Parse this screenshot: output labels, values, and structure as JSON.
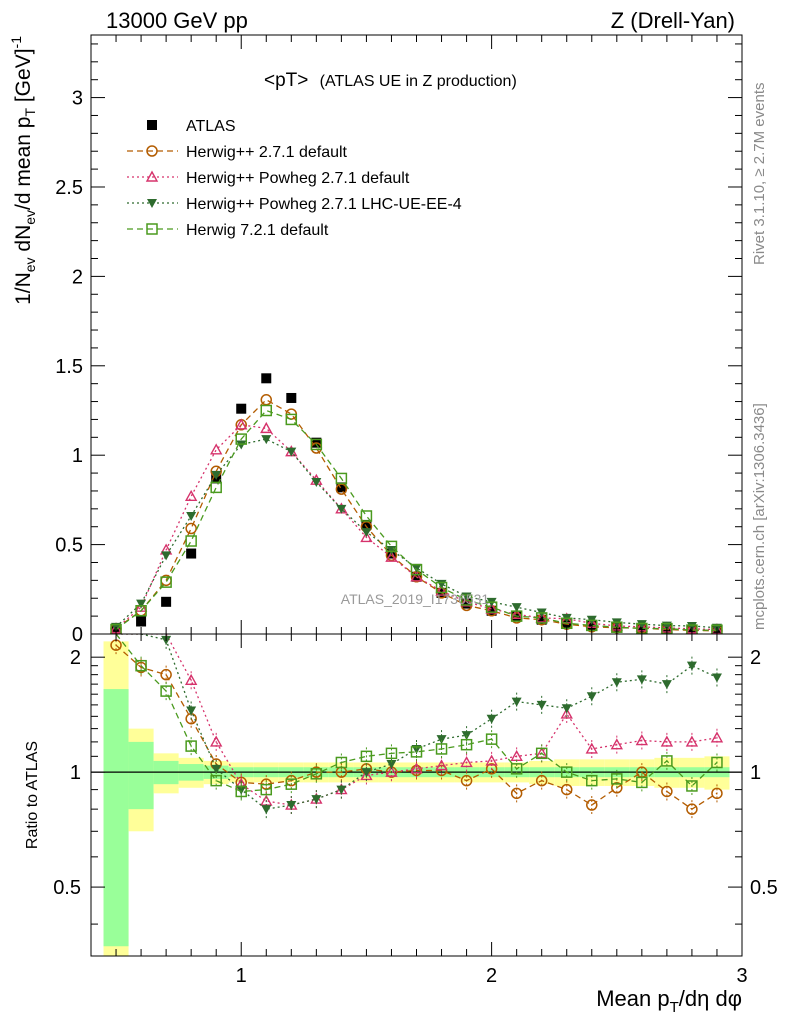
{
  "header": {
    "left": "13000 GeV pp",
    "right": "Z (Drell-Yan)"
  },
  "side_labels": {
    "rivet": "Rivet 3.1.10, ≥ 2.7M events",
    "mcplots": "mcplots.cern.ch [arXiv:1306.3436]"
  },
  "chart_data": [
    {
      "type": "scatter",
      "panel": "main",
      "title": "<pT> (ATLAS UE in Z production)",
      "title_main": "<pT>",
      "title_sub": "(ATLAS UE in Z production)",
      "xlabel": "Mean p_T/dη dφ",
      "ylabel": "1/N_ev dN_ev/d mean p_T [GeV]^-1",
      "watermark": "ATLAS_2019_I1736531",
      "xlim": [
        0.4,
        3.0
      ],
      "ylim": [
        0,
        3.35
      ],
      "y_ticks": [
        "0",
        "0.5",
        "1",
        "1.5",
        "2",
        "2.5",
        "3"
      ],
      "y_tick_values": [
        0,
        0.5,
        1,
        1.5,
        2,
        2.5,
        3
      ],
      "legend_position": "top-left",
      "x": [
        0.5,
        0.6,
        0.7,
        0.8,
        0.9,
        1.0,
        1.1,
        1.2,
        1.3,
        1.4,
        1.5,
        1.6,
        1.7,
        1.8,
        1.9,
        2.0,
        2.1,
        2.2,
        2.3,
        2.4,
        2.5,
        2.6,
        2.7,
        2.8,
        2.9
      ],
      "series": [
        {
          "name": "ATLAS",
          "color": "#000000",
          "marker": "square-filled",
          "line": "none",
          "values": [
            0.02,
            0.07,
            0.18,
            0.45,
            0.87,
            1.26,
            1.43,
            1.32,
            1.07,
            0.82,
            0.61,
            0.45,
            0.32,
            0.23,
            0.17,
            0.13,
            0.1,
            0.08,
            0.06,
            0.05,
            0.04,
            0.033,
            0.028,
            0.024,
            0.02
          ]
        },
        {
          "name": "Herwig++ 2.7.1 default",
          "color": "#b35c00",
          "marker": "circle-open",
          "line": "dashed",
          "values": [
            0.03,
            0.13,
            0.3,
            0.59,
            0.91,
            1.17,
            1.31,
            1.23,
            1.04,
            0.81,
            0.6,
            0.44,
            0.32,
            0.23,
            0.16,
            0.13,
            0.09,
            0.08,
            0.055,
            0.04,
            0.035,
            0.033,
            0.025,
            0.02,
            0.018
          ]
        },
        {
          "name": "Herwig++ Powheg 2.7.1 default",
          "color": "#d6336c",
          "marker": "triangle-up-open",
          "line": "dotted",
          "values": [
            0.03,
            0.15,
            0.47,
            0.77,
            1.03,
            1.17,
            1.15,
            1.02,
            0.86,
            0.7,
            0.54,
            0.43,
            0.32,
            0.24,
            0.18,
            0.14,
            0.11,
            0.09,
            0.085,
            0.06,
            0.045,
            0.04,
            0.034,
            0.029,
            0.025
          ]
        },
        {
          "name": "Herwig++ Powheg 2.7.1 LHC-UE-EE-4",
          "color": "#2e6b2e",
          "marker": "triangle-down-filled",
          "line": "dotted",
          "values": [
            0.04,
            0.17,
            0.44,
            0.66,
            0.89,
            1.06,
            1.09,
            1.02,
            0.85,
            0.7,
            0.57,
            0.47,
            0.37,
            0.28,
            0.21,
            0.18,
            0.15,
            0.12,
            0.09,
            0.08,
            0.065,
            0.055,
            0.047,
            0.045,
            0.035
          ]
        },
        {
          "name": "Herwig 7.2.1 default",
          "color": "#4a9a1e",
          "marker": "square-open",
          "line": "dashed",
          "values": [
            0.025,
            0.13,
            0.29,
            0.52,
            0.82,
            1.09,
            1.25,
            1.2,
            1.06,
            0.87,
            0.66,
            0.49,
            0.36,
            0.26,
            0.19,
            0.15,
            0.1,
            0.09,
            0.06,
            0.048,
            0.038,
            0.031,
            0.03,
            0.022,
            0.021
          ]
        }
      ]
    },
    {
      "type": "scatter",
      "panel": "ratio",
      "ylabel": "Ratio to ATLAS",
      "xlim": [
        0.4,
        3.0
      ],
      "ylim": [
        0.33,
        2.3
      ],
      "x_ticks": [
        "1",
        "2",
        "3"
      ],
      "x_tick_values": [
        1,
        2,
        3
      ],
      "y_ticks": [
        "0.5",
        "1",
        "2"
      ],
      "y_tick_values": [
        0.5,
        1,
        2
      ],
      "reference_line": 1,
      "uncertainty_bands": {
        "x_edges": [
          0.45,
          0.55,
          0.65,
          0.75,
          0.85,
          0.95,
          1.05,
          1.15,
          1.25,
          1.35,
          1.45,
          1.55,
          1.65,
          1.75,
          1.85,
          1.95,
          2.05,
          2.15,
          2.25,
          2.35,
          2.45,
          2.55,
          2.65,
          2.75,
          2.85,
          2.95
        ],
        "green_half_width": [
          0.65,
          0.2,
          0.07,
          0.05,
          0.04,
          0.03,
          0.03,
          0.03,
          0.03,
          0.03,
          0.03,
          0.03,
          0.03,
          0.03,
          0.03,
          0.03,
          0.03,
          0.03,
          0.03,
          0.03,
          0.03,
          0.03,
          0.03,
          0.03,
          0.03
        ],
        "yellow_half_width": [
          1.2,
          0.3,
          0.12,
          0.09,
          0.07,
          0.06,
          0.06,
          0.06,
          0.06,
          0.06,
          0.06,
          0.06,
          0.06,
          0.06,
          0.06,
          0.06,
          0.06,
          0.07,
          0.08,
          0.08,
          0.08,
          0.08,
          0.09,
          0.09,
          0.1
        ]
      },
      "x": [
        0.5,
        0.6,
        0.7,
        0.8,
        0.9,
        1.0,
        1.1,
        1.2,
        1.3,
        1.4,
        1.5,
        1.6,
        1.7,
        1.8,
        1.9,
        2.0,
        2.1,
        2.2,
        2.3,
        2.4,
        2.5,
        2.6,
        2.7,
        2.8,
        2.9
      ],
      "series": [
        {
          "name": "Herwig++ 2.7.1 default",
          "color": "#b35c00",
          "marker": "circle-open",
          "line": "dashed",
          "values": [
            2.15,
            1.88,
            1.8,
            1.38,
            1.05,
            0.94,
            0.93,
            0.95,
            1.0,
            1.0,
            1.02,
            1.0,
            1.01,
            1.01,
            0.95,
            1.02,
            0.88,
            0.95,
            0.9,
            0.82,
            0.91,
            1.0,
            0.89,
            0.8,
            0.88
          ]
        },
        {
          "name": "Herwig++ Powheg 2.7.1 default",
          "color": "#d6336c",
          "marker": "triangle-up-open",
          "line": "dotted",
          "values": [
            2.3,
            2.3,
            2.3,
            1.74,
            1.2,
            0.93,
            0.84,
            0.82,
            0.85,
            0.9,
            0.98,
            1.0,
            1.02,
            1.04,
            1.06,
            1.07,
            1.1,
            1.12,
            1.42,
            1.15,
            1.18,
            1.21,
            1.2,
            1.2,
            1.23
          ]
        },
        {
          "name": "Herwig++ Powheg 2.7.1 LHC-UE-EE-4",
          "color": "#2e6b2e",
          "marker": "triangle-down-filled",
          "line": "dotted",
          "values": [
            2.3,
            2.3,
            2.22,
            1.45,
            1.02,
            0.9,
            0.8,
            0.82,
            0.85,
            0.9,
            1.0,
            1.05,
            1.15,
            1.22,
            1.25,
            1.38,
            1.53,
            1.5,
            1.47,
            1.58,
            1.72,
            1.75,
            1.7,
            1.9,
            1.77
          ]
        },
        {
          "name": "Herwig 7.2.1 default",
          "color": "#4a9a1e",
          "marker": "square-open",
          "line": "dashed",
          "values": [
            2.3,
            1.9,
            1.63,
            1.17,
            0.95,
            0.89,
            0.9,
            0.93,
            0.99,
            1.06,
            1.1,
            1.12,
            1.13,
            1.15,
            1.18,
            1.22,
            1.02,
            1.12,
            1.0,
            0.95,
            0.96,
            0.94,
            1.07,
            0.92,
            1.06
          ]
        }
      ]
    }
  ]
}
